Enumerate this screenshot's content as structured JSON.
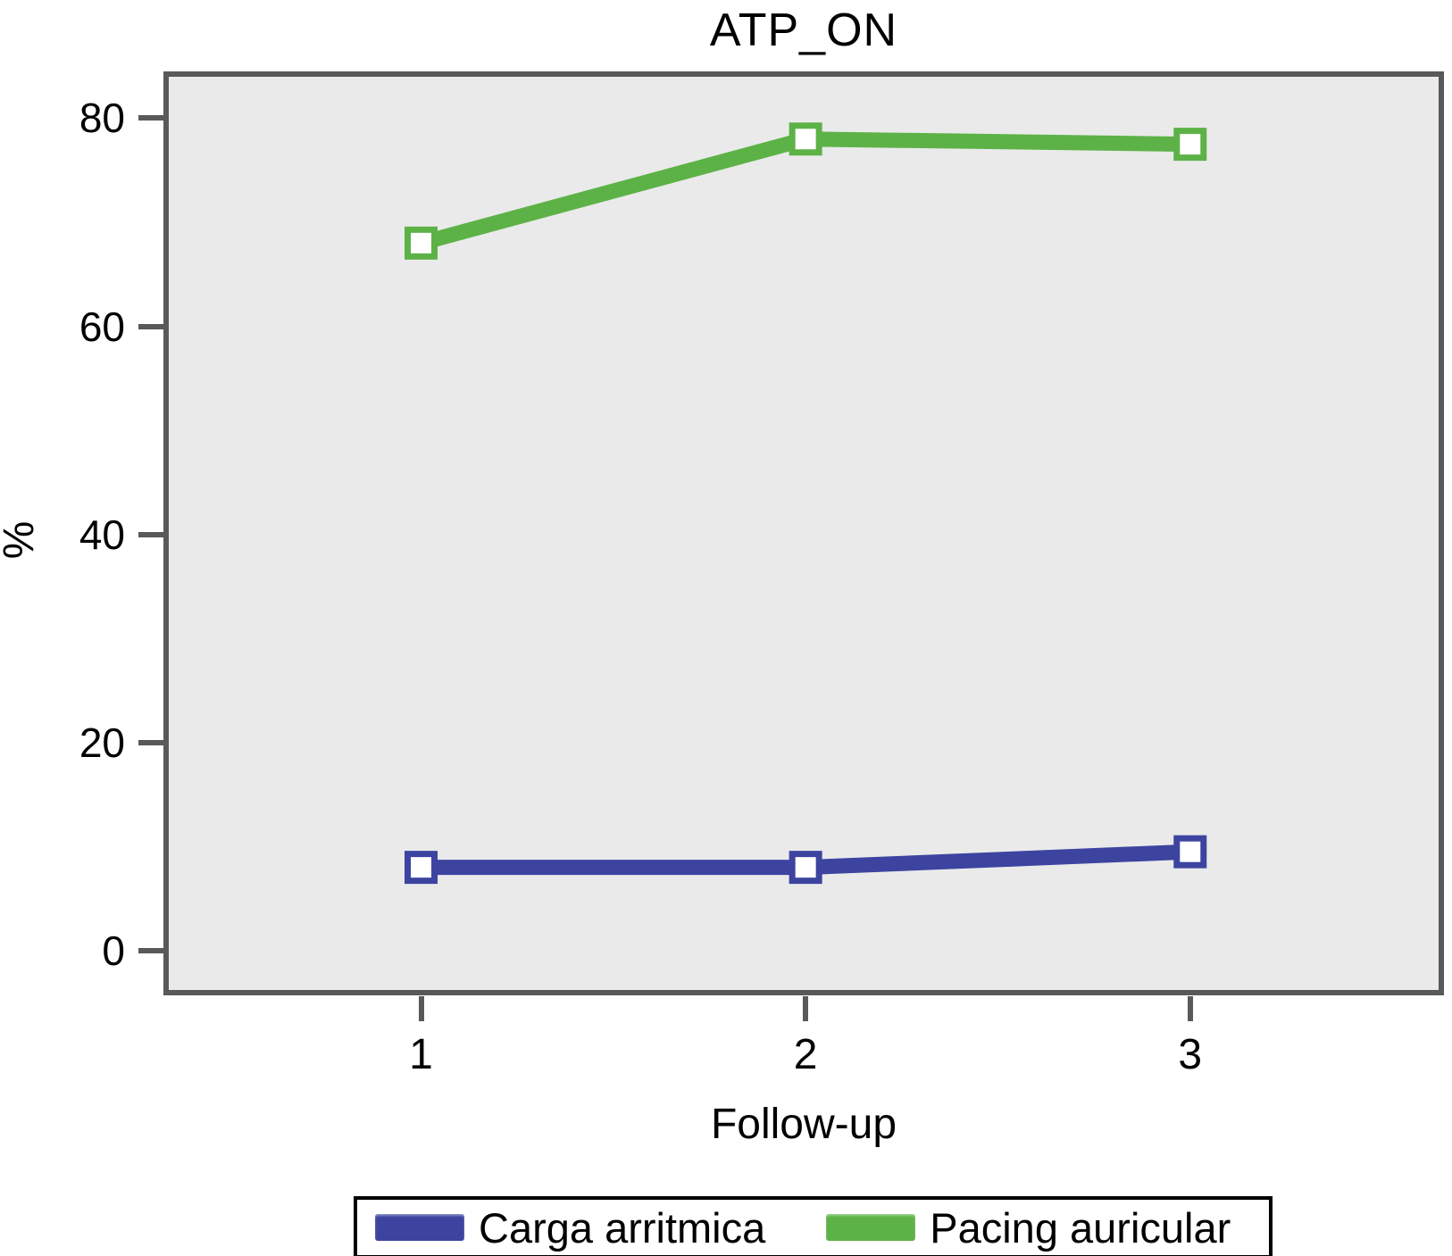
{
  "chart_data": {
    "type": "line",
    "title": "ATP_ON",
    "xlabel": "Follow-up",
    "ylabel": "%",
    "x": [
      1,
      2,
      3
    ],
    "series": [
      {
        "name": "Carga arritmica",
        "color": "#3c44a0",
        "values": [
          8,
          8,
          9.5
        ]
      },
      {
        "name": "Pacing auricular",
        "color": "#5cb246",
        "values": [
          68,
          78,
          77.5
        ]
      }
    ],
    "xticks": [
      "1",
      "2",
      "3"
    ],
    "yticks": [
      "0",
      "20",
      "40",
      "60",
      "80"
    ],
    "xtick_values": [
      1,
      2,
      3
    ],
    "ytick_values": [
      0,
      20,
      40,
      60,
      80
    ],
    "xlim": [
      0.33,
      3.66
    ],
    "ylim": [
      -4.3,
      84.5
    ],
    "grid": false,
    "legend_position": "bottom",
    "marker": "square-white-filled",
    "plot_background": "#eaeaea",
    "axis_color": "#58595b"
  }
}
